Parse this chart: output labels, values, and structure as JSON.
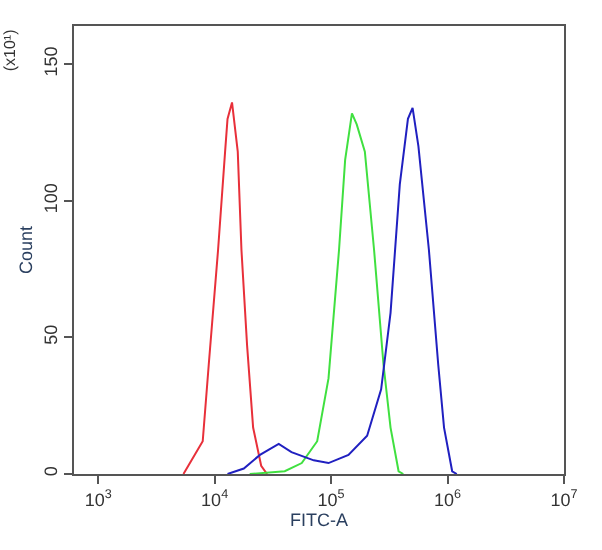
{
  "chart_data": {
    "type": "line",
    "xlabel": "FITC-A",
    "ylabel": "Count",
    "annotations": [
      "(x10¹)"
    ],
    "log": "x",
    "legend": false,
    "marker": "none",
    "line_style": "solid",
    "xlim": [
      620,
      10000000
    ],
    "xticks": [
      {
        "value": 1000,
        "label": "10$^{3}$"
      },
      {
        "value": 10000,
        "label": "10$^{4}$"
      },
      {
        "value": 100000,
        "label": "10$^{5}$"
      },
      {
        "value": 1000000,
        "label": "10$^{6}$"
      },
      {
        "value": 10000000,
        "label": "10$^{7}$"
      }
    ],
    "ylim": [
      0,
      164
    ],
    "yticks": [
      0,
      50,
      100,
      150
    ],
    "series": [
      {
        "color": "#e8303a",
        "x": [
          5400,
          7900,
          8900,
          10700,
          12300,
          12900,
          14100,
          15800,
          17000,
          19000,
          21400,
          25100,
          28200
        ],
        "values": [
          0,
          12,
          40,
          82,
          118,
          130,
          136,
          118,
          82,
          47,
          17,
          3,
          0
        ]
      },
      {
        "color": "#40e040",
        "x": [
          20000,
          40000,
          56000,
          76000,
          95000,
          117000,
          132000,
          151000,
          166000,
          195000,
          234000,
          282000,
          324000,
          380000,
          417000
        ],
        "values": [
          0,
          1,
          4,
          12,
          35,
          82,
          115,
          132,
          128,
          118,
          82,
          40,
          17,
          1,
          0
        ]
      },
      {
        "color": "#2020c0",
        "x": [
          12900,
          17800,
          24500,
          29500,
          35500,
          45700,
          71000,
          95000,
          141000,
          204000,
          269000,
          324000,
          389000,
          457000,
          501000,
          562000,
          692000,
          832000,
          933000,
          1096000,
          1200000
        ],
        "values": [
          0,
          2,
          7,
          9,
          11,
          8,
          5,
          4,
          7,
          14,
          31,
          59,
          106,
          130,
          134,
          120,
          82,
          40,
          17,
          1,
          0
        ]
      }
    ]
  }
}
